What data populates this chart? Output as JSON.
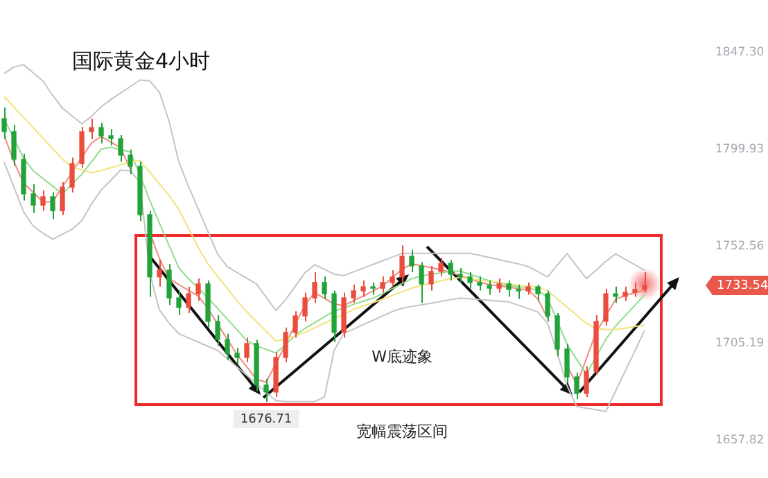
{
  "chart_data": {
    "type": "candlestick",
    "title": "国际黄金4小时",
    "categories": [
      null,
      null,
      null,
      null,
      null,
      null,
      null,
      null,
      null,
      null,
      null,
      null,
      null,
      null,
      null,
      null,
      null,
      null,
      null,
      null,
      null,
      null,
      null,
      null,
      null,
      null,
      null,
      null,
      null,
      null,
      null,
      null,
      null,
      null,
      null,
      null,
      null,
      null,
      null,
      null,
      null,
      null,
      null,
      null,
      null,
      null,
      null,
      null,
      null,
      null,
      null,
      null,
      null,
      null,
      null,
      null,
      null,
      null,
      null,
      null,
      null,
      null,
      null,
      null,
      null,
      null,
      null
    ],
    "ohlc": [
      [
        1815.0,
        1820.5,
        1805.0,
        1808.7
      ],
      [
        1808.7,
        1812.0,
        1792.0,
        1795.2
      ],
      [
        1795.2,
        1798.0,
        1775.0,
        1778.3
      ],
      [
        1778.3,
        1783.0,
        1769.0,
        1772.8
      ],
      [
        1772.8,
        1780.0,
        1770.0,
        1776.9
      ],
      [
        1776.9,
        1779.0,
        1766.0,
        1770.1
      ],
      [
        1770.1,
        1784.0,
        1768.0,
        1781.6
      ],
      [
        1781.6,
        1796.0,
        1779.0,
        1793.1
      ],
      [
        1793.1,
        1811.0,
        1791.0,
        1808.7
      ],
      [
        1808.7,
        1815.0,
        1805.0,
        1810.7
      ],
      [
        1810.7,
        1813.0,
        1803.0,
        1806.7
      ],
      [
        1806.7,
        1810.0,
        1802.0,
        1805.3
      ],
      [
        1805.3,
        1807.0,
        1794.0,
        1797.2
      ],
      [
        1797.2,
        1800.0,
        1788.0,
        1791.8
      ],
      [
        1791.8,
        1794.0,
        1765.0,
        1768.1
      ],
      [
        1768.1,
        1770.0,
        1728.0,
        1737.7
      ],
      [
        1737.7,
        1746.0,
        1733.0,
        1741.0
      ],
      [
        1741.0,
        1744.0,
        1724.0,
        1727.5
      ],
      [
        1727.5,
        1731.0,
        1719.0,
        1722.8
      ],
      [
        1722.8,
        1733.0,
        1720.0,
        1729.5
      ],
      [
        1729.5,
        1737.0,
        1726.0,
        1734.3
      ],
      [
        1734.3,
        1736.0,
        1713.0,
        1716.0
      ],
      [
        1716.0,
        1719.0,
        1704.0,
        1707.2
      ],
      [
        1707.2,
        1710.0,
        1697.0,
        1700.4
      ],
      [
        1700.4,
        1703.0,
        1695.0,
        1698.4
      ],
      [
        1698.4,
        1708.0,
        1696.0,
        1705.2
      ],
      [
        1705.2,
        1707.0,
        1682.0,
        1684.9
      ],
      [
        1684.9,
        1688.0,
        1676.71,
        1681.5
      ],
      [
        1681.5,
        1701.0,
        1679.0,
        1698.4
      ],
      [
        1698.4,
        1713.0,
        1696.0,
        1710.6
      ],
      [
        1710.6,
        1721.0,
        1708.0,
        1718.7
      ],
      [
        1718.7,
        1730.0,
        1716.0,
        1727.5
      ],
      [
        1727.5,
        1740.0,
        1725.0,
        1735.0
      ],
      [
        1735.0,
        1738.0,
        1727.0,
        1729.5
      ],
      [
        1729.5,
        1731.0,
        1706.0,
        1710.6
      ],
      [
        1710.6,
        1730.0,
        1708.0,
        1727.5
      ],
      [
        1727.5,
        1734.0,
        1725.0,
        1730.9
      ],
      [
        1730.9,
        1736.0,
        1728.0,
        1732.9
      ],
      [
        1732.9,
        1735.0,
        1729.0,
        1732.2
      ],
      [
        1732.2,
        1738.0,
        1730.0,
        1735.0
      ],
      [
        1735.0,
        1741.0,
        1733.0,
        1737.7
      ],
      [
        1737.7,
        1753.0,
        1735.0,
        1747.8
      ],
      [
        1747.8,
        1751.0,
        1740.0,
        1743.1
      ],
      [
        1743.1,
        1745.0,
        1725.0,
        1734.3
      ],
      [
        1734.3,
        1743.0,
        1731.0,
        1740.4
      ],
      [
        1740.4,
        1747.0,
        1738.0,
        1744.4
      ],
      [
        1744.4,
        1746.0,
        1736.0,
        1739.0
      ],
      [
        1739.0,
        1742.0,
        1735.0,
        1737.7
      ],
      [
        1737.7,
        1740.0,
        1732.0,
        1735.0
      ],
      [
        1735.0,
        1738.0,
        1731.0,
        1733.6
      ],
      [
        1733.6,
        1736.0,
        1729.0,
        1732.2
      ],
      [
        1732.2,
        1737.0,
        1730.0,
        1734.3
      ],
      [
        1734.3,
        1736.0,
        1728.0,
        1731.6
      ],
      [
        1731.6,
        1734.0,
        1727.0,
        1730.9
      ],
      [
        1730.9,
        1735.0,
        1729.0,
        1732.9
      ],
      [
        1732.9,
        1734.0,
        1726.0,
        1729.5
      ],
      [
        1729.5,
        1731.0,
        1716.0,
        1718.7
      ],
      [
        1718.7,
        1720.0,
        1699.0,
        1702.5
      ],
      [
        1702.5,
        1705.0,
        1686.0,
        1688.9
      ],
      [
        1688.9,
        1691.0,
        1678.0,
        1680.8
      ],
      [
        1680.8,
        1694.0,
        1679.0,
        1691.6
      ],
      [
        1691.6,
        1719.0,
        1690.0,
        1716.0
      ],
      [
        1716.0,
        1732.0,
        1714.0,
        1729.5
      ],
      [
        1729.5,
        1733.0,
        1725.0,
        1728.2
      ],
      [
        1728.2,
        1733.0,
        1726.0,
        1730.2
      ],
      [
        1730.2,
        1735.0,
        1728.0,
        1731.6
      ],
      [
        1731.6,
        1740.0,
        1730.0,
        1733.54
      ]
    ],
    "colors": [
      "#22a33a",
      "#22a33a",
      "#22a33a",
      "#22a33a",
      "#eb4d3d",
      "#22a33a",
      "#eb4d3d",
      "#eb4d3d",
      "#eb4d3d",
      "#eb4d3d",
      "#22a33a",
      "#22a33a",
      "#22a33a",
      "#22a33a",
      "#22a33a",
      "#22a33a",
      "#eb4d3d",
      "#22a33a",
      "#22a33a",
      "#eb4d3d",
      "#eb4d3d",
      "#22a33a",
      "#22a33a",
      "#22a33a",
      "#22a33a",
      "#eb4d3d",
      "#22a33a",
      "#22a33a",
      "#eb4d3d",
      "#eb4d3d",
      "#eb4d3d",
      "#eb4d3d",
      "#eb4d3d",
      "#22a33a",
      "#22a33a",
      "#eb4d3d",
      "#eb4d3d",
      "#eb4d3d",
      "#22a33a",
      "#eb4d3d",
      "#eb4d3d",
      "#eb4d3d",
      "#22a33a",
      "#22a33a",
      "#eb4d3d",
      "#eb4d3d",
      "#22a33a",
      "#22a33a",
      "#22a33a",
      "#22a33a",
      "#22a33a",
      "#eb4d3d",
      "#22a33a",
      "#22a33a",
      "#eb4d3d",
      "#22a33a",
      "#22a33a",
      "#22a33a",
      "#22a33a",
      "#22a33a",
      "#eb4d3d",
      "#eb4d3d",
      "#eb4d3d",
      "#22a33a",
      "#eb4d3d",
      "#eb4d3d",
      "#eb4d3d"
    ],
    "series": [
      {
        "type": "line",
        "color": "#c4c4c4",
        "values": [
          1837.1,
          1840.3,
          1841.4,
          1837.4,
          1833.4,
          1826.4,
          1820.2,
          1816.3,
          1812.5,
          1816.2,
          1820.8,
          1824.4,
          1827.6,
          1830.7,
          1833.9,
          1833.5,
          1827.9,
          1813.7,
          1793.8,
          1781.9,
          1770.9,
          1759.8,
          1748.8,
          1742.7,
          1739.9,
          1737.1,
          1734.3,
          1727.8,
          1721.3,
          1726.6,
          1733.2,
          1739.8,
          1743.7,
          1741.4,
          1739.1,
          1738.4,
          1740.2,
          1742.0,
          1743.8,
          1745.6,
          1747.4,
          1749.2,
          1749.2,
          1749.2,
          1749.2,
          1749.2,
          1749.2,
          1749.2,
          1749.2,
          1748.3,
          1747.2,
          1746.2,
          1745.1,
          1744.1,
          1742.8,
          1740.3,
          1737.7,
          1743.5,
          1749.2,
          1743.0,
          1736.9,
          1741.0,
          1745.3,
          1749.0,
          1746.3,
          1743.7,
          1741.0
        ]
      },
      {
        "type": "line",
        "color": "#c4c4c4",
        "values": [
          1793.8,
          1781.7,
          1769.5,
          1762.6,
          1759.1,
          1756.1,
          1758.6,
          1761.0,
          1765.2,
          1773.4,
          1780.2,
          1785.0,
          1789.9,
          1789.5,
          1784.0,
          1739.5,
          1721.6,
          1715.1,
          1710.0,
          1707.9,
          1705.9,
          1703.8,
          1701.8,
          1697.8,
          1693.7,
          1689.7,
          1685.6,
          1681.4,
          1677.2,
          1676.8,
          1676.8,
          1676.8,
          1676.8,
          1679.1,
          1701.8,
          1710.1,
          1712.2,
          1714.4,
          1716.5,
          1718.7,
          1720.8,
          1722.4,
          1723.3,
          1724.1,
          1724.9,
          1725.8,
          1726.6,
          1727.4,
          1727.1,
          1726.7,
          1726.3,
          1725.9,
          1725.5,
          1723.9,
          1722.3,
          1720.6,
          1715.1,
          1700.6,
          1684.6,
          1674.4,
          1673.6,
          1672.8,
          1672.0,
          1681.9,
          1691.8,
          1701.7,
          1711.6
        ]
      },
      {
        "type": "line",
        "color": "#f2e27a",
        "values": [
          1825.7,
          1820.7,
          1815.6,
          1810.5,
          1805.5,
          1800.4,
          1795.3,
          1791.4,
          1790.0,
          1788.6,
          1789.7,
          1791.1,
          1792.5,
          1793.9,
          1794.6,
          1788.9,
          1783.2,
          1777.5,
          1770.7,
          1761.4,
          1752.1,
          1744.1,
          1738.0,
          1732.0,
          1725.9,
          1720.7,
          1715.9,
          1711.2,
          1706.4,
          1707.4,
          1709.0,
          1710.6,
          1712.9,
          1715.1,
          1717.4,
          1719.6,
          1721.8,
          1723.6,
          1725.1,
          1726.9,
          1728.7,
          1730.5,
          1732.2,
          1733.6,
          1734.7,
          1735.8,
          1736.9,
          1737.5,
          1736.9,
          1736.2,
          1735.6,
          1735.0,
          1734.3,
          1733.7,
          1733.2,
          1732.6,
          1731.0,
          1727.0,
          1723.0,
          1719.0,
          1715.0,
          1712.5,
          1712.1,
          1712.0,
          1712.7,
          1713.5,
          1714.2
        ]
      },
      {
        "type": "line",
        "color": "#90dd8c",
        "values": [
          1815.0,
          1805.3,
          1795.7,
          1789.6,
          1785.8,
          1782.1,
          1778.3,
          1783.1,
          1787.9,
          1793.9,
          1800.1,
          1801.1,
          1799.9,
          1798.7,
          1787.5,
          1775.2,
          1763.9,
          1753.0,
          1742.1,
          1736.8,
          1732.2,
          1727.5,
          1722.3,
          1717.1,
          1711.9,
          1706.6,
          1704.0,
          1702.3,
          1700.6,
          1704.6,
          1709.2,
          1712.6,
          1715.4,
          1718.2,
          1721.0,
          1722.6,
          1724.3,
          1725.9,
          1727.3,
          1729.6,
          1732.0,
          1734.4,
          1736.8,
          1738.2,
          1739.0,
          1739.7,
          1740.5,
          1740.5,
          1739.0,
          1737.4,
          1735.9,
          1734.3,
          1733.6,
          1732.9,
          1732.1,
          1731.4,
          1727.5,
          1716.2,
          1704.9,
          1697.4,
          1690.3,
          1698.8,
          1707.2,
          1713.7,
          1718.8,
          1723.9,
          1729.0
        ]
      },
      {
        "type": "line",
        "color": "#f08a80",
        "values": [
          1806.9,
          1794.0,
          1783.6,
          1779.0,
          1774.3,
          1774.4,
          1781.7,
          1788.9,
          1796.1,
          1803.2,
          1806.3,
          1803.6,
          1800.9,
          1790.3,
          null,
          1759.5,
          1746.7,
          1736.9,
          1734.0,
          1731.2,
          1728.4,
          1722.2,
          1714.7,
          1707.2,
          1699.8,
          1693.8,
          1687.7,
          1686.3,
          1695.5,
          1704.8,
          1714.5,
          1724.1,
          1730.1,
          1727.3,
          1724.5,
          1723.7,
          1726.1,
          1728.4,
          1730.8,
          1733.3,
          1737.4,
          1741.5,
          1744.1,
          1743.2,
          1742.2,
          1741.3,
          1739.9,
          1738.4,
          1736.8,
          1735.2,
          1734.0,
          1733.3,
          1732.7,
          1732.0,
          1731.3,
          1727.0,
          1717.4,
          null,
          1694.6,
          1685.0,
          1697.9,
          1710.6,
          1718.7,
          1726.7,
          1728.7,
          1730.0,
          1731.3
        ]
      }
    ],
    "ylim": [
      1639.5,
      1873
    ],
    "yticks": [
      1657.82,
      1705.19,
      1752.56,
      1799.93,
      {
        "value": 1847.3,
        "label": "1847.30"
      }
    ],
    "tick_labels": "y",
    "annotations": [
      "W底迹象",
      "宽幅震荡区间",
      {
        "text": "1676.71",
        "y": 1676.71
      },
      "1733.54"
    ]
  }
}
